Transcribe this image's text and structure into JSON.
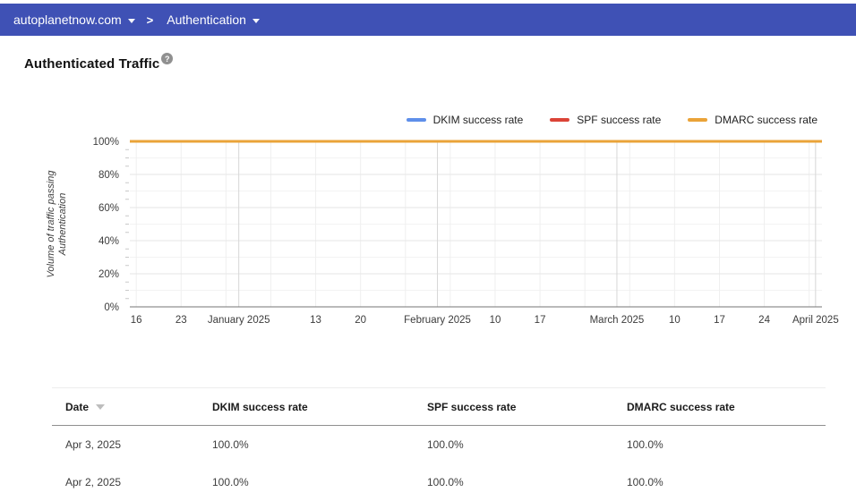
{
  "colors": {
    "header_bar": "#3F51B5",
    "dkim": "#5E8FEA",
    "spf": "#DB4437",
    "dmarc": "#EAA338",
    "axis_line": "#757575",
    "grid_major": "#e6e6e6",
    "grid_minor": "#f3f3f3",
    "grid_week": "#efefef",
    "grid_month": "#d6d6d6",
    "axis_text": "#3c3c3c"
  },
  "icons": {
    "dropdown_caret": "caret-down",
    "breadcrumb_chevron": ">",
    "sort": "triangle-down",
    "help": "?"
  },
  "header": {
    "domain_label": "autoplanetnow.com",
    "section_label": "Authentication"
  },
  "page": {
    "title": "Authenticated Traffic"
  },
  "chart_data": {
    "type": "line",
    "title": "Authenticated Traffic",
    "ylabel": "Volume of traffic passing Authentication",
    "ylabel_lines": [
      "Volume of traffic passing",
      "Authentication"
    ],
    "ylim": [
      0,
      100
    ],
    "y_ticks": [
      {
        "v": 0,
        "label": "0%"
      },
      {
        "v": 20,
        "label": "20%"
      },
      {
        "v": 40,
        "label": "40%"
      },
      {
        "v": 60,
        "label": "60%"
      },
      {
        "v": 80,
        "label": "80%"
      },
      {
        "v": 100,
        "label": "100%"
      }
    ],
    "y_minor_gridline_step": 10,
    "y_minor_tick_step": 5,
    "x_domain": {
      "start": "Dec 15, 2024",
      "end": "Apr 2, 2025",
      "days": 108
    },
    "x_ticks": [
      {
        "day": 1,
        "label": "16"
      },
      {
        "day": 8,
        "label": "23"
      },
      {
        "day": 17,
        "label": "January 2025",
        "month": true
      },
      {
        "day": 29,
        "label": "13"
      },
      {
        "day": 36,
        "label": "20"
      },
      {
        "day": 48,
        "label": "February 2025",
        "month": true
      },
      {
        "day": 57,
        "label": "10"
      },
      {
        "day": 64,
        "label": "17"
      },
      {
        "day": 76,
        "label": "March 2025",
        "month": true
      },
      {
        "day": 85,
        "label": "10"
      },
      {
        "day": 92,
        "label": "17"
      },
      {
        "day": 99,
        "label": "24"
      },
      {
        "day": 107,
        "label": "April 2025",
        "month": true
      }
    ],
    "week_gridline_days": [
      1,
      8,
      15,
      22,
      29,
      36,
      43,
      50,
      57,
      64,
      71,
      78,
      85,
      92,
      99,
      106
    ],
    "month_gridline_days": [
      17,
      48,
      76,
      107
    ],
    "series": [
      {
        "name": "DKIM success rate",
        "color": "#5E8FEA",
        "constant_value_percent": 100
      },
      {
        "name": "SPF success rate",
        "color": "#DB4437",
        "constant_value_percent": 100
      },
      {
        "name": "DMARC success rate",
        "color": "#EAA338",
        "constant_value_percent": 100
      }
    ],
    "legend_position": "top-right",
    "grid": true
  },
  "table": {
    "columns": [
      {
        "label": "Date",
        "sortable": true,
        "sort": "desc"
      },
      {
        "label": "DKIM success rate"
      },
      {
        "label": "SPF success rate"
      },
      {
        "label": "DMARC success rate"
      }
    ],
    "rows": [
      [
        "Apr 3, 2025",
        "100.0%",
        "100.0%",
        "100.0%"
      ],
      [
        "Apr 2, 2025",
        "100.0%",
        "100.0%",
        "100.0%"
      ]
    ]
  }
}
